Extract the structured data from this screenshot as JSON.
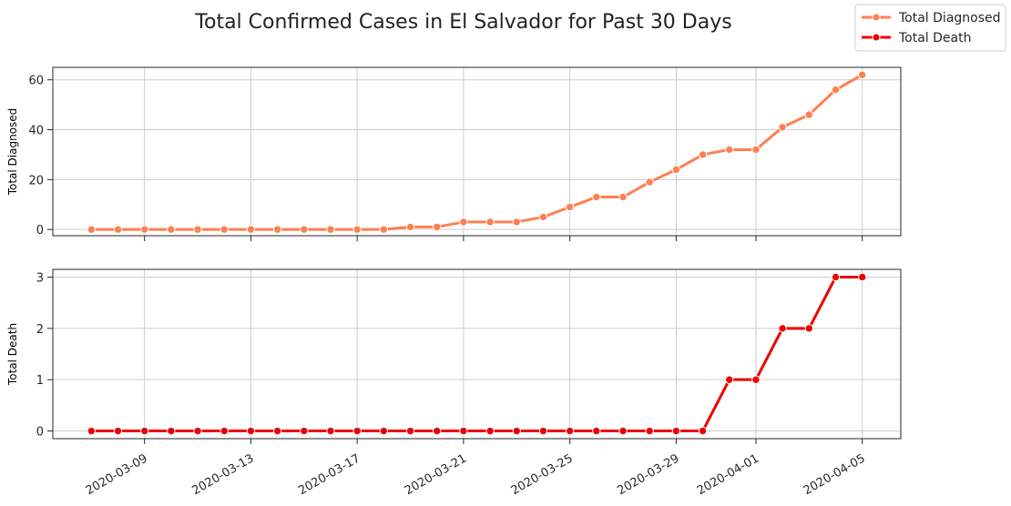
{
  "chart_data": {
    "type": "line",
    "title": "Total Confirmed Cases in El Salvador for Past 30 Days",
    "legend": {
      "placement": "top-right",
      "entries": [
        "Total Diagnosed",
        "Total Death"
      ]
    },
    "colors": {
      "diagnosed": "#ff7f50",
      "death": "#ee0000",
      "grid": "#cccccc"
    },
    "x": [
      "2020-03-07",
      "2020-03-08",
      "2020-03-09",
      "2020-03-10",
      "2020-03-11",
      "2020-03-12",
      "2020-03-13",
      "2020-03-14",
      "2020-03-15",
      "2020-03-16",
      "2020-03-17",
      "2020-03-18",
      "2020-03-19",
      "2020-03-20",
      "2020-03-21",
      "2020-03-22",
      "2020-03-23",
      "2020-03-24",
      "2020-03-25",
      "2020-03-26",
      "2020-03-27",
      "2020-03-28",
      "2020-03-29",
      "2020-03-30",
      "2020-03-31",
      "2020-04-01",
      "2020-04-02",
      "2020-04-03",
      "2020-04-04",
      "2020-04-05"
    ],
    "xticks": [
      "2020-03-09",
      "2020-03-13",
      "2020-03-17",
      "2020-03-21",
      "2020-03-25",
      "2020-03-29",
      "2020-04-01",
      "2020-04-05"
    ],
    "grid": true,
    "subplots": [
      {
        "ylabel": "Total Diagnosed",
        "ylim": [
          -2.5,
          65
        ],
        "yticks": [
          "0",
          "20",
          "40",
          "60"
        ],
        "series": [
          {
            "name": "Total Diagnosed",
            "color": "#ff7f50",
            "values": [
              0,
              0,
              0,
              0,
              0,
              0,
              0,
              0,
              0,
              0,
              0,
              0,
              1,
              1,
              3,
              3,
              3,
              5,
              9,
              13,
              13,
              19,
              24,
              30,
              32,
              32,
              41,
              46,
              56,
              62
            ]
          }
        ]
      },
      {
        "ylabel": "Total Death",
        "ylim": [
          -0.15,
          3.15
        ],
        "yticks": [
          "0",
          "1",
          "2",
          "3"
        ],
        "series": [
          {
            "name": "Total Death",
            "color": "#ee0000",
            "values": [
              0,
              0,
              0,
              0,
              0,
              0,
              0,
              0,
              0,
              0,
              0,
              0,
              0,
              0,
              0,
              0,
              0,
              0,
              0,
              0,
              0,
              0,
              0,
              0,
              1,
              1,
              2,
              2,
              3,
              3
            ]
          }
        ]
      }
    ]
  }
}
